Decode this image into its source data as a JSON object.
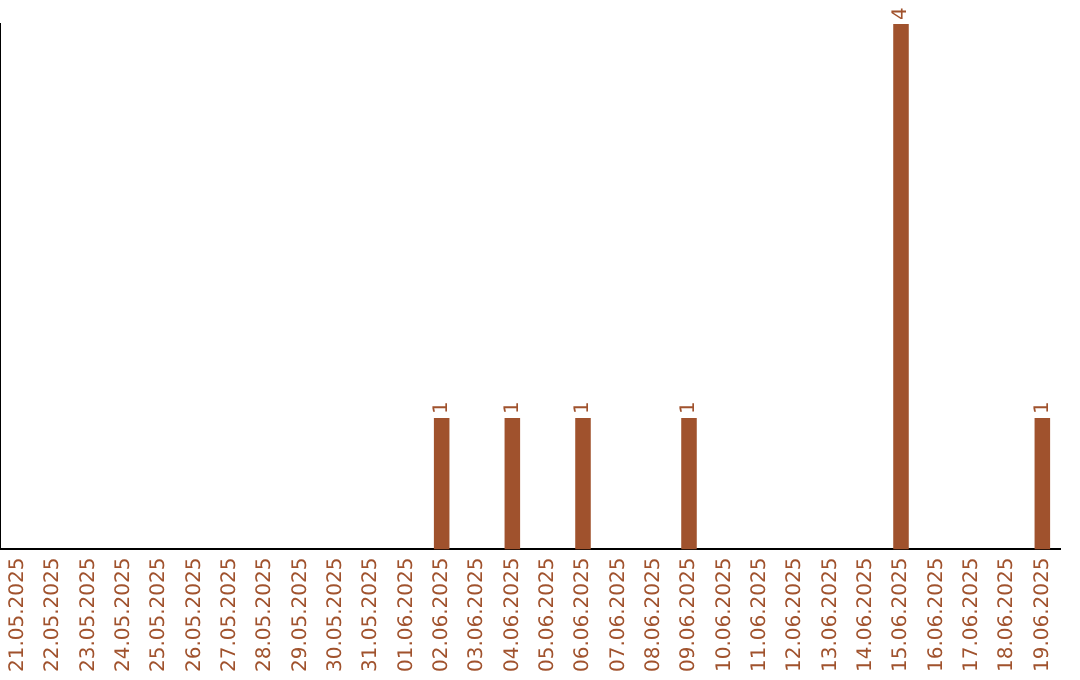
{
  "chart_data": {
    "type": "bar",
    "categories": [
      "21.05.2025",
      "22.05.2025",
      "23.05.2025",
      "24.05.2025",
      "25.05.2025",
      "26.05.2025",
      "27.05.2025",
      "28.05.2025",
      "29.05.2025",
      "30.05.2025",
      "31.05.2025",
      "01.06.2025",
      "02.06.2025",
      "03.06.2025",
      "04.06.2025",
      "05.06.2025",
      "06.06.2025",
      "07.06.2025",
      "08.06.2025",
      "09.06.2025",
      "10.06.2025",
      "11.06.2025",
      "12.06.2025",
      "13.06.2025",
      "14.06.2025",
      "15.06.2025",
      "16.06.2025",
      "17.06.2025",
      "18.06.2025",
      "19.06.2025"
    ],
    "values": [
      null,
      null,
      null,
      null,
      null,
      null,
      null,
      null,
      null,
      null,
      null,
      null,
      1,
      null,
      1,
      null,
      1,
      null,
      null,
      1,
      null,
      null,
      null,
      null,
      null,
      4,
      null,
      null,
      null,
      1
    ],
    "value_labels": [
      null,
      null,
      null,
      null,
      null,
      null,
      null,
      null,
      null,
      null,
      null,
      null,
      "1",
      null,
      "1",
      null,
      "1",
      null,
      null,
      "1",
      null,
      null,
      null,
      null,
      null,
      "4",
      null,
      null,
      null,
      "1"
    ],
    "color": "#a0522d",
    "grid": false,
    "legend": false
  }
}
